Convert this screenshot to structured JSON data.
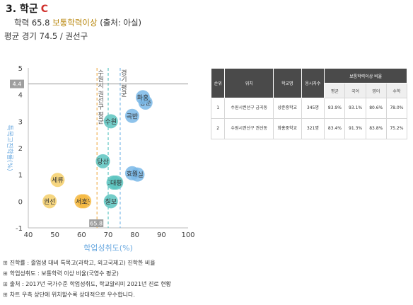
{
  "heading": {
    "title": "3. 학군",
    "grade": "C"
  },
  "summary": {
    "rate_prefix": "학력 65.8",
    "rate_label": "보통학력이상",
    "rate_source": "(출처: 아실)",
    "competition": "평균 경기 74.5 / 권선구"
  },
  "table": {
    "headers": [
      "순위",
      "위치",
      "학교명",
      "응시자수",
      "보통학력이상 비율"
    ],
    "subheaders": [
      "평균",
      "국어",
      "영어",
      "수학"
    ],
    "rows": [
      {
        "rank": "1",
        "location": "수원시권선구 금곡동",
        "school": "상준중학교",
        "count": "345명",
        "avg": "83.9%",
        "kor": "93.1%",
        "eng": "80.6%",
        "math": "78.0%"
      },
      {
        "rank": "2",
        "location": "수원시권선구 권선동",
        "school": "화홍중학교",
        "count": "321명",
        "avg": "83.4%",
        "kor": "91.3%",
        "eng": "83.8%",
        "math": "75.2%"
      }
    ]
  },
  "notes": [
    "진학률 : 졸업생 대비 특목고(과학고, 외고국제고) 진학한 비율",
    "학업성취도 : 보통학력 이상 비율(국영수 평균)",
    "출처 : 2017년 국가수준 학업성취도, 학교알리미 2021년 진로 현황",
    "차트 우측 상단에 위치할수록 상대적으로 우수합니다."
  ],
  "colors": {
    "blue": "#7ab8e8",
    "teal": "#5cc4c0",
    "yellow": "#f5cf6a",
    "orange": "#f5b941",
    "accent": "#d0312d"
  },
  "chart_data": {
    "type": "scatter",
    "xlabel": "학업성취도(%)",
    "ylabel": "특목고진학률(%)",
    "xlim": [
      40,
      100
    ],
    "ylim": [
      -1,
      5
    ],
    "xticks": [
      40,
      50,
      60,
      70,
      80,
      90,
      100
    ],
    "yticks": [
      -1,
      0,
      1,
      2,
      3,
      4,
      5
    ],
    "grid": false,
    "ref_lines": [
      {
        "axis": "x",
        "value": 65.8,
        "label": "수원시 권선구 평균",
        "badge": "65.8",
        "color": "#f0b45a"
      },
      {
        "axis": "x",
        "value": 70,
        "label": "",
        "badge": "",
        "color": "#5cc4c0"
      },
      {
        "axis": "x",
        "value": 74.5,
        "label": "경기 평균",
        "badge": "",
        "color": "#7ab8e8"
      },
      {
        "axis": "y",
        "value": 4.4,
        "label": "",
        "badge": "4.4",
        "color": "#999999"
      }
    ],
    "points": [
      {
        "label": "상준",
        "x": 84,
        "y": 3.7,
        "color": "#7ab8e8"
      },
      {
        "label": "화홍",
        "x": 83,
        "y": 3.9,
        "color": "#7ab8e8"
      },
      {
        "label": "곡반",
        "x": 79,
        "y": 3.2,
        "color": "#7ab8e8"
      },
      {
        "label": "수원",
        "x": 71,
        "y": 3.0,
        "color": "#5cc4c0"
      },
      {
        "label": "매실",
        "x": 81,
        "y": 1.0,
        "color": "#7ab8e8"
      },
      {
        "label": "효원",
        "x": 79,
        "y": 1.05,
        "color": "#7ab8e8"
      },
      {
        "label": "당산",
        "x": 68,
        "y": 1.5,
        "color": "#5cc4c0"
      },
      {
        "label": "고색",
        "x": 72,
        "y": 0.7,
        "color": "#5cc4c0"
      },
      {
        "label": "대평",
        "x": 73,
        "y": 0.7,
        "color": "#5cc4c0"
      },
      {
        "label": "칠보",
        "x": 71,
        "y": 0.0,
        "color": "#5cc4c0"
      },
      {
        "label": "세류",
        "x": 51,
        "y": 0.8,
        "color": "#f5cf6a"
      },
      {
        "label": "권선",
        "x": 48,
        "y": 0.0,
        "color": "#f5cf6a"
      },
      {
        "label": "구운",
        "x": 61,
        "y": 0.0,
        "color": "#f5b941"
      },
      {
        "label": "서호",
        "x": 60,
        "y": 0.0,
        "color": "#f5b941"
      }
    ]
  }
}
